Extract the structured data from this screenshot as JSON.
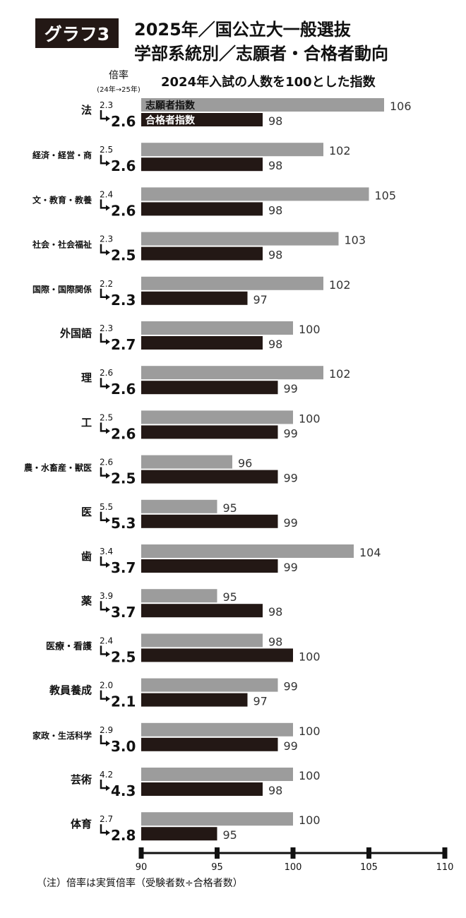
{
  "header": {
    "badge": "グラフ3",
    "title_line1": "2025年／国公立大一般選抜",
    "title_line2": "学部系統別／志願者・合格者動向",
    "subtitle": "2024年入試の人数を100とした指数",
    "ratio_label": "倍率",
    "ratio_sublabel": "(24年→25年)"
  },
  "footnote": "（注）倍率は実質倍率（受験者数÷合格者数）",
  "chart_data": {
    "type": "bar",
    "orientation": "horizontal",
    "categories": [
      "法",
      "経済・経営・商",
      "文・教育・教養",
      "社会・社会福祉",
      "国際・国際関係",
      "外国語",
      "理",
      "工",
      "農・水畜産・獣医",
      "医",
      "歯",
      "薬",
      "医療・看護",
      "教員養成",
      "家政・生活科学",
      "芸術",
      "体育"
    ],
    "series": [
      {
        "name": "志願者指数",
        "color": "#9c9c9c",
        "values": [
          106,
          102,
          105,
          103,
          102,
          100,
          102,
          100,
          96,
          95,
          104,
          95,
          98,
          99,
          100,
          100,
          100
        ]
      },
      {
        "name": "合格者指数",
        "color": "#231815",
        "values": [
          98,
          98,
          98,
          98,
          97,
          98,
          99,
          99,
          99,
          99,
          99,
          98,
          100,
          97,
          99,
          98,
          95
        ]
      }
    ],
    "ratio_2024": [
      "2.3",
      "2.5",
      "2.4",
      "2.3",
      "2.2",
      "2.3",
      "2.6",
      "2.5",
      "2.6",
      "5.5",
      "3.4",
      "3.9",
      "2.4",
      "2.0",
      "2.9",
      "4.2",
      "2.7"
    ],
    "ratio_2025": [
      "2.6",
      "2.6",
      "2.6",
      "2.5",
      "2.3",
      "2.7",
      "2.6",
      "2.6",
      "2.5",
      "5.3",
      "3.7",
      "3.7",
      "2.5",
      "2.1",
      "3.0",
      "4.3",
      "2.8"
    ],
    "xlim": [
      90,
      110
    ],
    "x_ticks": [
      90,
      95,
      100,
      105,
      110
    ],
    "legend": "inside-first-bars"
  }
}
